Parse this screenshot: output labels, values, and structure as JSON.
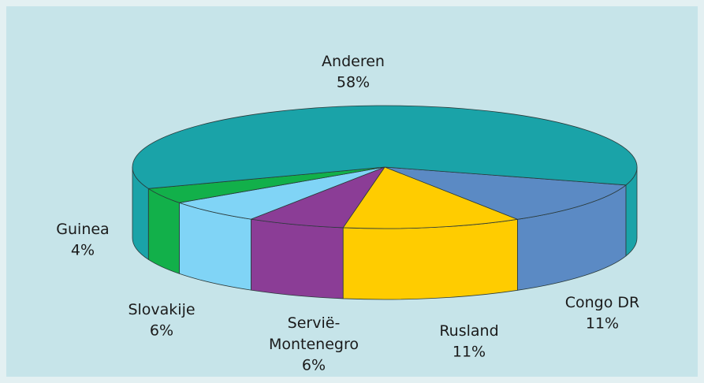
{
  "chart_data": {
    "type": "pie3d",
    "categories": [
      "Congo DR",
      "Rusland",
      "Servië-Montenegro",
      "Slovakije",
      "Guinea",
      "Anderen"
    ],
    "values": [
      11,
      11,
      6,
      6,
      4,
      58
    ],
    "value_labels": [
      "11%",
      "11%",
      "6%",
      "6%",
      "4%",
      "58%"
    ],
    "colors": [
      "#5b8ac4",
      "#ffcc00",
      "#8b3d96",
      "#80d4f6",
      "#12b04a",
      "#1aa3a8"
    ]
  }
}
